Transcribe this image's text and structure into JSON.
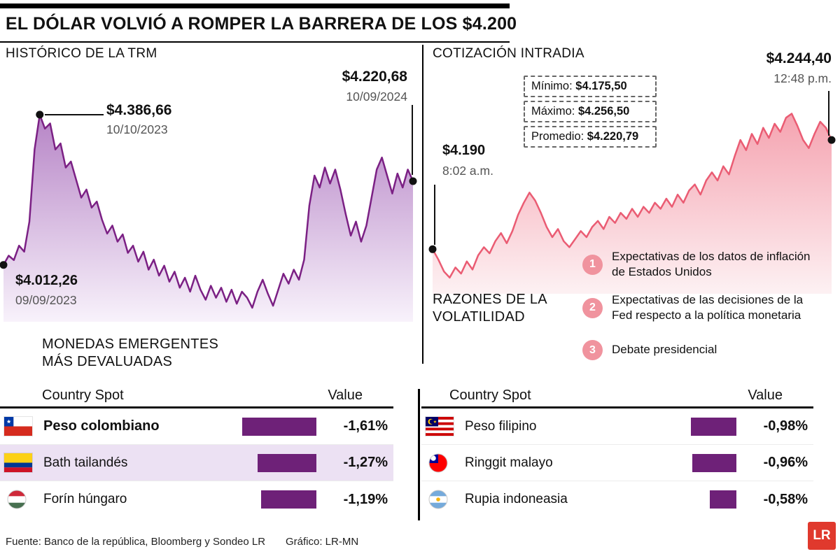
{
  "title": "EL DÓLAR VOLVIÓ A ROMPER LA BARRERA DE LOS $4.200",
  "colors": {
    "trm_line": "#7b2084",
    "trm_fill_top": "#b684c6",
    "trm_fill_bottom": "#f8f2fb",
    "intraday_line": "#ea5c73",
    "intraday_fill_top": "#f5a3b0",
    "intraday_fill_bottom": "#fdf1f3",
    "bar": "#6e2178",
    "row_highlight": "#ece1f3",
    "badge": "#f0939e",
    "logo_red": "#e0392d"
  },
  "trm": {
    "heading": "HISTÓRICO DE LA TRM",
    "annotations": {
      "peak": {
        "value": "$4.386,66",
        "date": "10/10/2023"
      },
      "end": {
        "value": "$4.220,68",
        "date": "10/09/2024"
      },
      "start": {
        "value": "$4.012,26",
        "date": "09/09/2023"
      }
    }
  },
  "intraday": {
    "heading": "COTIZACIÓN INTRADIA",
    "annotations": {
      "start": {
        "value": "$4.190",
        "time": "8:02 a.m."
      },
      "end": {
        "value": "$4.244,40",
        "time": "12:48 p.m."
      }
    },
    "stats": [
      {
        "label": "Mínimo: ",
        "value": "$4.175,50"
      },
      {
        "label": "Máximo: ",
        "value": "$4.256,50"
      },
      {
        "label": "Promedio: ",
        "value": "$4.220,79"
      }
    ]
  },
  "reasons": {
    "heading": "RAZONES DE LA\nVOLATILIDAD",
    "items": [
      {
        "num": "1",
        "text": "Expectativas de los datos de inflación de Estados Unidos"
      },
      {
        "num": "2",
        "text": "Expectativas de las decisiones de la Fed respecto a la política monetaria"
      },
      {
        "num": "3",
        "text": "Debate presidencial"
      }
    ]
  },
  "tables": {
    "heading": "MONEDAS EMERGENTES\nMÁS DEVALUADAS",
    "columns": {
      "country": "Country Spot",
      "value": "Value"
    },
    "left": {
      "rows": [
        {
          "name": "Peso colombiano",
          "value": "-1,61%",
          "pct": 1.61
        },
        {
          "name": "Bath tailandés",
          "value": "-1,27%",
          "pct": 1.27
        },
        {
          "name": "Forín húngaro",
          "value": "-1,19%",
          "pct": 1.19
        }
      ]
    },
    "right": {
      "rows": [
        {
          "name": "Peso filipino",
          "value": "-0,98%",
          "pct": 0.98
        },
        {
          "name": "Ringgit malayo",
          "value": "-0,96%",
          "pct": 0.96
        },
        {
          "name": "Rupia indoneasia",
          "value": "-0,58%",
          "pct": 0.58
        }
      ]
    }
  },
  "footer": {
    "source": "Fuente: Banco de la república, Bloomberg y Sondeo LR",
    "credit": "Gráfico: LR-MN",
    "logo": "LR"
  },
  "chart_data": [
    {
      "type": "area",
      "title": "HISTÓRICO DE LA TRM (COP por USD)",
      "x_start": "09/09/2023",
      "x_end": "10/09/2024",
      "ylim": [
        3870,
        4420
      ],
      "key_points": {
        "start": 4012.26,
        "peak": 4386.66,
        "end": 4220.68
      },
      "dots": [
        0,
        7,
        79
      ],
      "line_color": "#7b2084",
      "fill_top": "#b684c6",
      "fill_bottom": "#f8f2fb",
      "values": [
        4012,
        4035,
        4024,
        4060,
        4045,
        4120,
        4300,
        4387,
        4352,
        4365,
        4300,
        4315,
        4255,
        4270,
        4225,
        4180,
        4200,
        4155,
        4170,
        4125,
        4090,
        4110,
        4070,
        4088,
        4042,
        4060,
        4020,
        4045,
        4000,
        4025,
        3985,
        4010,
        3970,
        3995,
        3955,
        3980,
        3945,
        3985,
        3950,
        3925,
        3960,
        3930,
        3955,
        3920,
        3950,
        3915,
        3945,
        3930,
        3905,
        3945,
        3975,
        3940,
        3910,
        3950,
        3990,
        3965,
        4000,
        3975,
        4025,
        4160,
        4235,
        4205,
        4255,
        4215,
        4250,
        4200,
        4140,
        4085,
        4120,
        4070,
        4110,
        4180,
        4250,
        4280,
        4235,
        4190,
        4240,
        4205,
        4250,
        4221
      ]
    },
    {
      "type": "area",
      "title": "COTIZACIÓN INTRADIA (COP por USD)",
      "x_start": "8:02 a.m.",
      "x_end": "12:48 p.m.",
      "ylim": [
        4168,
        4262
      ],
      "key_points": {
        "start": 4190,
        "min": 4175.5,
        "max": 4256.5,
        "avg": 4220.79,
        "end": 4244.4
      },
      "dots": [
        0,
        70
      ],
      "line_color": "#ea5c73",
      "fill_top": "#f5a3b0",
      "fill_bottom": "#fdf1f3",
      "values": [
        4190,
        4185,
        4179,
        4176,
        4181,
        4178,
        4184,
        4180,
        4187,
        4191,
        4188,
        4194,
        4198,
        4193,
        4199,
        4207,
        4213,
        4218,
        4214,
        4208,
        4201,
        4196,
        4200,
        4194,
        4191,
        4195,
        4199,
        4196,
        4201,
        4204,
        4200,
        4206,
        4203,
        4208,
        4205,
        4210,
        4206,
        4211,
        4208,
        4213,
        4210,
        4215,
        4211,
        4217,
        4213,
        4219,
        4222,
        4217,
        4224,
        4228,
        4224,
        4231,
        4227,
        4236,
        4244,
        4239,
        4247,
        4242,
        4250,
        4245,
        4252,
        4248,
        4255,
        4257,
        4251,
        4244,
        4240,
        4247,
        4253,
        4250,
        4244
      ]
    }
  ]
}
